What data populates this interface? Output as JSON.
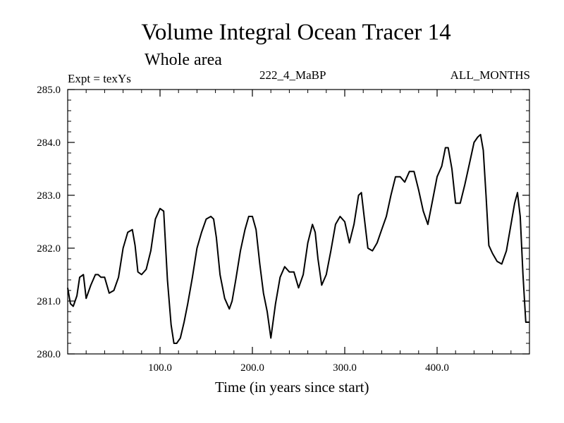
{
  "chart_data": {
    "type": "line",
    "title": "Volume Integral Ocean Tracer 14",
    "subtitle": "Whole area",
    "annotations": {
      "left": "Expt = texYs",
      "center": "222_4_MaBP",
      "right": "ALL_MONTHS"
    },
    "xlabel": "Time (in years since start)",
    "ylabel": "",
    "xlim": [
      0,
      500
    ],
    "ylim": [
      280.0,
      285.0
    ],
    "x_ticks": [
      100,
      200,
      300,
      400
    ],
    "x_tick_labels": [
      "100.0",
      "200.0",
      "300.0",
      "400.0"
    ],
    "y_ticks": [
      280.0,
      281.0,
      282.0,
      283.0,
      284.0,
      285.0
    ],
    "y_tick_labels": [
      "280.0",
      "281.0",
      "282.0",
      "283.0",
      "284.0",
      "285.0"
    ],
    "grid": false,
    "series": [
      {
        "name": "",
        "color": "#000000",
        "x": [
          0,
          3,
          6,
          10,
          13,
          17,
          20,
          25,
          30,
          33,
          36,
          40,
          45,
          50,
          55,
          60,
          65,
          70,
          73,
          76,
          80,
          85,
          90,
          95,
          100,
          104,
          108,
          112,
          115,
          118,
          122,
          126,
          130,
          135,
          140,
          145,
          150,
          155,
          158,
          161,
          165,
          170,
          175,
          178,
          182,
          187,
          192,
          196,
          200,
          204,
          208,
          212,
          216,
          220,
          225,
          230,
          235,
          240,
          245,
          250,
          255,
          260,
          265,
          268,
          271,
          275,
          280,
          285,
          290,
          295,
          300,
          305,
          310,
          315,
          318,
          321,
          325,
          330,
          335,
          340,
          345,
          350,
          355,
          360,
          365,
          370,
          375,
          380,
          385,
          390,
          395,
          400,
          405,
          409,
          412,
          416,
          420,
          425,
          430,
          435,
          440,
          444,
          447,
          450,
          453,
          456,
          460,
          465,
          470,
          475,
          480,
          484,
          487,
          490,
          493,
          496,
          500
        ],
        "y": [
          281.25,
          280.95,
          280.9,
          281.1,
          281.45,
          281.5,
          281.05,
          281.3,
          281.5,
          281.5,
          281.45,
          281.45,
          281.15,
          281.2,
          281.45,
          282.0,
          282.3,
          282.35,
          282.05,
          281.55,
          281.5,
          281.6,
          281.95,
          282.55,
          282.75,
          282.7,
          281.4,
          280.55,
          280.2,
          280.2,
          280.3,
          280.6,
          280.95,
          281.45,
          282.0,
          282.3,
          282.55,
          282.6,
          282.55,
          282.2,
          281.5,
          281.05,
          280.85,
          281.0,
          281.4,
          281.95,
          282.35,
          282.6,
          282.6,
          282.35,
          281.7,
          281.15,
          280.8,
          280.3,
          280.95,
          281.45,
          281.65,
          281.55,
          281.55,
          281.25,
          281.5,
          282.1,
          282.45,
          282.3,
          281.8,
          281.3,
          281.5,
          281.95,
          282.45,
          282.6,
          282.5,
          282.1,
          282.45,
          283.0,
          283.05,
          282.6,
          282.0,
          281.95,
          282.1,
          282.35,
          282.6,
          283.0,
          283.35,
          283.35,
          283.25,
          283.45,
          283.45,
          283.1,
          282.7,
          282.45,
          282.9,
          283.35,
          283.55,
          283.9,
          283.9,
          283.5,
          282.85,
          282.85,
          283.2,
          283.6,
          284.0,
          284.1,
          284.15,
          283.85,
          283.0,
          282.05,
          281.9,
          281.75,
          281.7,
          281.95,
          282.45,
          282.85,
          283.05,
          282.6,
          281.5,
          280.6,
          280.6
        ]
      }
    ]
  }
}
